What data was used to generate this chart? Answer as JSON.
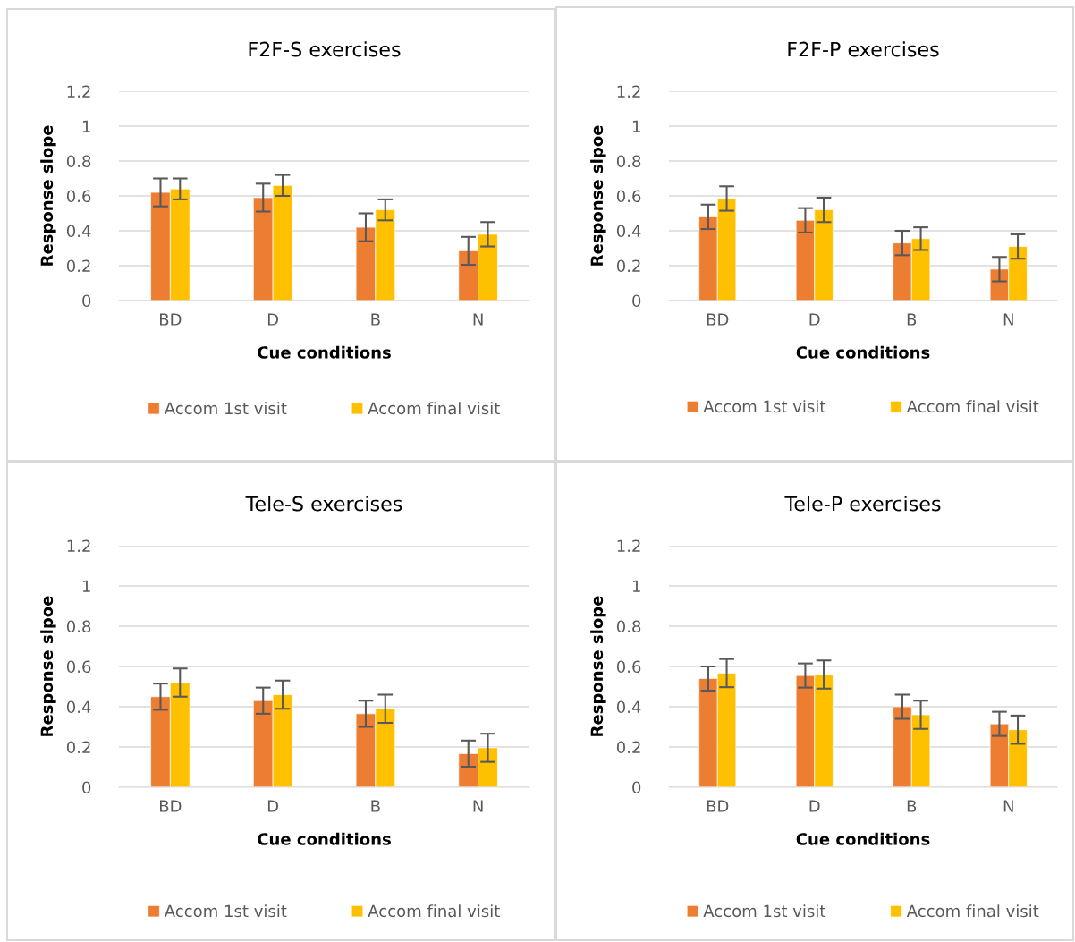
{
  "chart_data": [
    {
      "type": "bar",
      "title": "F2F-S exercises",
      "xlabel": "Cue conditions",
      "ylabel": "Response slope",
      "categories": [
        "BD",
        "D",
        "B",
        "N"
      ],
      "ylim": [
        0,
        1.2
      ],
      "yticks": [
        0,
        0.2,
        0.4,
        0.6,
        0.8,
        1,
        1.2
      ],
      "grid": "y",
      "legend": "bottom",
      "series": [
        {
          "name": "Accom 1st visit",
          "color": "#ed7d31",
          "values": [
            0.62,
            0.59,
            0.42,
            0.285
          ],
          "errors": [
            0.08,
            0.08,
            0.08,
            0.08
          ]
        },
        {
          "name": "Accom final visit",
          "color": "#ffc000",
          "values": [
            0.64,
            0.66,
            0.52,
            0.38
          ],
          "errors": [
            0.06,
            0.06,
            0.06,
            0.07
          ]
        }
      ]
    },
    {
      "type": "bar",
      "title": "F2F-P exercises",
      "xlabel": "Cue conditions",
      "ylabel": "Response slpoe",
      "categories": [
        "BD",
        "D",
        "B",
        "N"
      ],
      "ylim": [
        0,
        1.2
      ],
      "yticks": [
        0,
        0.2,
        0.4,
        0.6,
        0.8,
        1,
        1.2
      ],
      "grid": "y",
      "legend": "bottom",
      "series": [
        {
          "name": "Accom 1st visit",
          "color": "#ed7d31",
          "values": [
            0.48,
            0.46,
            0.33,
            0.18
          ],
          "errors": [
            0.07,
            0.07,
            0.07,
            0.07
          ]
        },
        {
          "name": "Accom final visit",
          "color": "#ffc000",
          "values": [
            0.585,
            0.52,
            0.355,
            0.31
          ],
          "errors": [
            0.07,
            0.07,
            0.065,
            0.07
          ]
        }
      ]
    },
    {
      "type": "bar",
      "title": "Tele-S exercises",
      "xlabel": "Cue conditions",
      "ylabel": "Response slpoe",
      "categories": [
        "BD",
        "D",
        "B",
        "N"
      ],
      "ylim": [
        0,
        1.2
      ],
      "yticks": [
        0,
        0.2,
        0.4,
        0.6,
        0.8,
        1,
        1.2
      ],
      "grid": "y",
      "legend": "bottom",
      "series": [
        {
          "name": "Accom 1st visit",
          "color": "#ed7d31",
          "values": [
            0.45,
            0.43,
            0.365,
            0.167
          ],
          "errors": [
            0.065,
            0.065,
            0.065,
            0.065
          ]
        },
        {
          "name": "Accom final visit",
          "color": "#ffc000",
          "values": [
            0.52,
            0.46,
            0.39,
            0.196
          ],
          "errors": [
            0.07,
            0.07,
            0.07,
            0.07
          ]
        }
      ]
    },
    {
      "type": "bar",
      "title": "Tele-P exercises",
      "xlabel": "Cue conditions",
      "ylabel": "Response slope",
      "categories": [
        "BD",
        "D",
        "B",
        "N"
      ],
      "ylim": [
        0,
        1.2
      ],
      "yticks": [
        0,
        0.2,
        0.4,
        0.6,
        0.8,
        1,
        1.2
      ],
      "grid": "y",
      "legend": "bottom",
      "series": [
        {
          "name": "Accom 1st visit",
          "color": "#ed7d31",
          "values": [
            0.54,
            0.555,
            0.4,
            0.315
          ],
          "errors": [
            0.06,
            0.06,
            0.06,
            0.06
          ]
        },
        {
          "name": "Accom final visit",
          "color": "#ffc000",
          "values": [
            0.567,
            0.56,
            0.36,
            0.286
          ],
          "errors": [
            0.07,
            0.07,
            0.07,
            0.07
          ]
        }
      ]
    }
  ]
}
